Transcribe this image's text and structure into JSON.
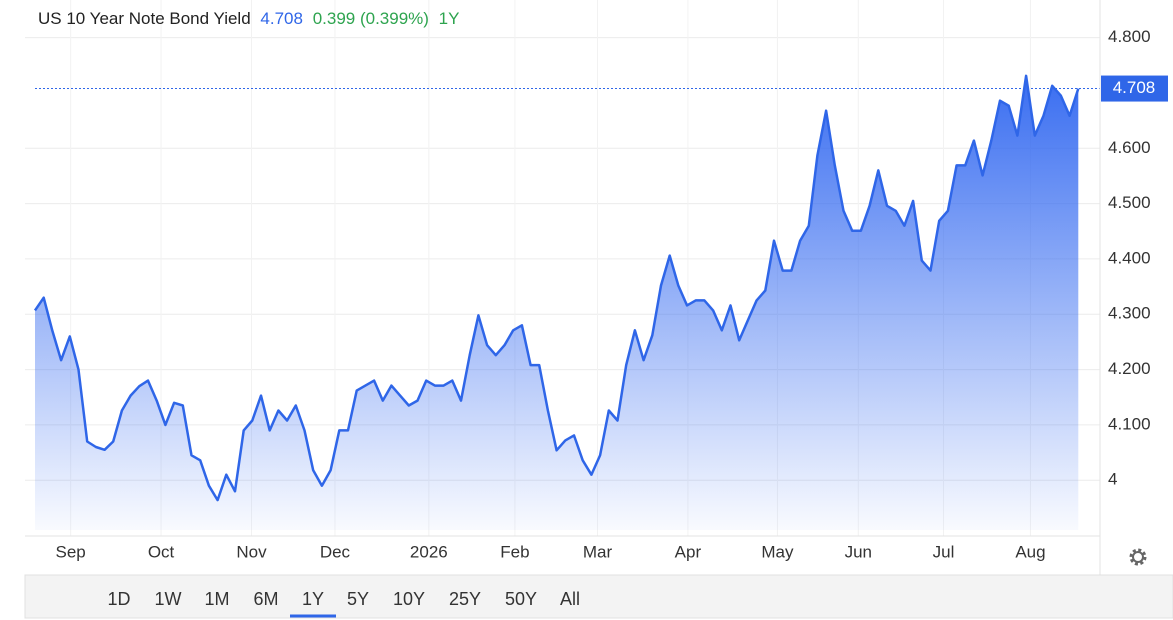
{
  "chart_data": {
    "type": "area",
    "title": "US 10 Year Note Bond Yield",
    "price": 4.708,
    "change": "0.399 (0.399%)",
    "period": "1Y",
    "color": "#2f66e8",
    "values": [
      4.307,
      4.33,
      4.27,
      4.217,
      4.26,
      4.2,
      4.07,
      4.06,
      4.055,
      4.07,
      4.126,
      4.153,
      4.17,
      4.18,
      4.144,
      4.1,
      4.14,
      4.135,
      4.045,
      4.036,
      3.99,
      3.964,
      4.01,
      3.98,
      4.09,
      4.108,
      4.153,
      4.09,
      4.126,
      4.108,
      4.135,
      4.09,
      4.018,
      3.99,
      4.018,
      4.09,
      4.09,
      4.162,
      4.171,
      4.18,
      4.144,
      4.171,
      4.153,
      4.135,
      4.144,
      4.18,
      4.171,
      4.171,
      4.18,
      4.144,
      4.226,
      4.298,
      4.244,
      4.226,
      4.244,
      4.271,
      4.28,
      4.208,
      4.208,
      4.126,
      4.054,
      4.072,
      4.081,
      4.036,
      4.01,
      4.045,
      4.126,
      4.108,
      4.208,
      4.271,
      4.217,
      4.262,
      4.352,
      4.406,
      4.352,
      4.316,
      4.325,
      4.325,
      4.307,
      4.271,
      4.316,
      4.253,
      4.289,
      4.325,
      4.343,
      4.433,
      4.379,
      4.379,
      4.433,
      4.46,
      4.587,
      4.668,
      4.569,
      4.487,
      4.451,
      4.451,
      4.496,
      4.56,
      4.496,
      4.487,
      4.46,
      4.505,
      4.397,
      4.379,
      4.469,
      4.487,
      4.569,
      4.569,
      4.614,
      4.551,
      4.614,
      4.686,
      4.677,
      4.623,
      4.731,
      4.623,
      4.659,
      4.713,
      4.695,
      4.659,
      4.708
    ],
    "xlim": [
      0,
      122.5
    ],
    "xticks": [
      {
        "value": 4.1,
        "label": "Sep"
      },
      {
        "value": 14.5,
        "label": "Oct"
      },
      {
        "value": 24.9,
        "label": "Nov"
      },
      {
        "value": 34.5,
        "label": "Dec"
      },
      {
        "value": 45.3,
        "label": "2026"
      },
      {
        "value": 55.2,
        "label": "Feb"
      },
      {
        "value": 64.7,
        "label": "Mar"
      },
      {
        "value": 75.1,
        "label": "Apr"
      },
      {
        "value": 85.4,
        "label": "May"
      },
      {
        "value": 94.7,
        "label": "Jun"
      },
      {
        "value": 104.5,
        "label": "Jul"
      },
      {
        "value": 114.5,
        "label": "Aug"
      }
    ],
    "ylim": [
      3.91,
      4.85
    ],
    "yticks": [
      4,
      {
        "value": 4.1,
        "label": "4.100"
      },
      {
        "value": 4.2,
        "label": "4.200"
      },
      {
        "value": 4.3,
        "label": "4.300"
      },
      {
        "value": 4.4,
        "label": "4.400"
      },
      {
        "value": 4.5,
        "label": "4.500"
      },
      {
        "value": 4.6,
        "label": "4.600"
      },
      {
        "value": 4.8,
        "label": "4.800"
      }
    ],
    "grid": true,
    "ranges": [
      "1D",
      "1W",
      "1M",
      "6M",
      "1Y",
      "5Y",
      "10Y",
      "25Y",
      "50Y",
      "All"
    ]
  }
}
